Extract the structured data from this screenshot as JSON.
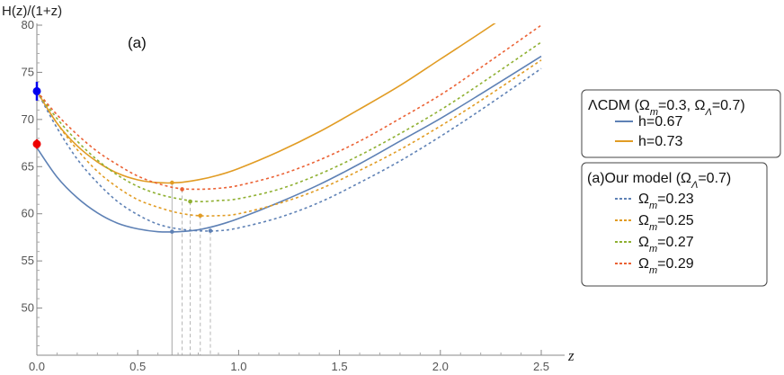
{
  "chart_data": {
    "type": "line",
    "ylabel": "H(z)/(1+z)",
    "xlabel": "z",
    "panel_label": "(a)",
    "xlim": [
      0,
      2.5
    ],
    "ylim": [
      45,
      80
    ],
    "x_ticks": [
      0.0,
      0.5,
      1.0,
      1.5,
      2.0,
      2.5
    ],
    "x_tick_labels": [
      "0.0",
      "0.5",
      "1.0",
      "1.5",
      "2.0",
      "2.5"
    ],
    "y_ticks": [
      50,
      55,
      60,
      65,
      70,
      75,
      80
    ],
    "y_tick_labels": [
      "50",
      "55",
      "60",
      "65",
      "70",
      "75",
      "80"
    ],
    "z": [
      0,
      0.1,
      0.2,
      0.3,
      0.4,
      0.5,
      0.6,
      0.7,
      0.8,
      0.9,
      1.0,
      1.2,
      1.4,
      1.6,
      1.8,
      2.0,
      2.2,
      2.5
    ],
    "series": [
      {
        "legend": "lcdm",
        "label": "h=0.67",
        "color": "#5e81b5",
        "dash": "solid",
        "values": [
          67.0,
          63.9,
          61.7,
          60.1,
          59.0,
          58.4,
          58.1,
          58.1,
          58.3,
          58.8,
          59.5,
          61.2,
          63.1,
          65.3,
          67.7,
          70.1,
          72.7,
          76.7
        ],
        "min": {
          "z": 0.67,
          "value": 58.1
        }
      },
      {
        "legend": "lcdm",
        "label": "h=0.73",
        "color": "#e19c24",
        "dash": "solid",
        "values": [
          73.0,
          69.6,
          67.2,
          65.5,
          64.3,
          63.6,
          63.3,
          63.3,
          63.6,
          64.1,
          64.8,
          66.6,
          68.7,
          71.1,
          73.6,
          76.4,
          79.2,
          83.5
        ],
        "min": {
          "z": 0.67,
          "value": 63.3
        }
      },
      {
        "legend": "model",
        "label_prefix": "Ω",
        "label_sub": "m",
        "label_suffix": "=0.23",
        "color": "#5e81b5",
        "dash": "dotted",
        "values": [
          73.0,
          69.1,
          65.8,
          63.3,
          61.3,
          59.9,
          58.9,
          58.4,
          58.2,
          58.2,
          58.5,
          59.6,
          61.2,
          63.3,
          65.6,
          68.2,
          71.0,
          75.4
        ],
        "min": {
          "z": 0.86,
          "value": 58.2
        }
      },
      {
        "legend": "model",
        "label_prefix": "Ω",
        "label_sub": "m",
        "label_suffix": "=0.25",
        "color": "#e19c24",
        "dash": "dotted",
        "values": [
          73.0,
          69.6,
          66.8,
          64.5,
          62.8,
          61.5,
          60.7,
          60.1,
          59.8,
          59.8,
          60.0,
          61.1,
          62.6,
          64.6,
          66.8,
          69.3,
          72.0,
          76.3
        ],
        "min": {
          "z": 0.81,
          "value": 59.8
        }
      },
      {
        "legend": "model",
        "label_prefix": "Ω",
        "label_sub": "m",
        "label_suffix": "=0.27",
        "color": "#8fb032",
        "dash": "dotted",
        "values": [
          73.0,
          70.1,
          67.7,
          65.7,
          64.1,
          62.9,
          62.1,
          61.6,
          61.3,
          61.4,
          61.6,
          62.6,
          64.2,
          66.2,
          68.5,
          71.0,
          73.8,
          78.2
        ],
        "min": {
          "z": 0.76,
          "value": 61.3
        }
      },
      {
        "legend": "model",
        "label_prefix": "Ω",
        "label_sub": "m",
        "label_suffix": "=0.29",
        "color": "#eb6235",
        "dash": "dotted",
        "values": [
          73.0,
          70.5,
          68.4,
          66.6,
          65.2,
          64.0,
          63.2,
          62.7,
          62.6,
          62.7,
          63.0,
          64.1,
          65.7,
          67.7,
          70.1,
          72.6,
          75.5,
          80.0
        ],
        "min": {
          "z": 0.72,
          "value": 62.6
        }
      }
    ],
    "data_points": [
      {
        "z": 0,
        "value": 73.0,
        "error": 1.0,
        "color": "#0000ee"
      },
      {
        "z": 0,
        "value": 67.4,
        "error": 0.5,
        "color": "#ee0000"
      }
    ],
    "legend_lcdm_title": {
      "prefix": "ΛCDM (Ω",
      "sub1": "m",
      "mid": "=0.3, Ω",
      "sub2": "Λ",
      "suffix": "=0.7)"
    },
    "legend_model_title": {
      "prefix": "(a)Our model (Ω",
      "sub": "Λ",
      "suffix": "=0.7)"
    },
    "legend_placement": "right"
  }
}
